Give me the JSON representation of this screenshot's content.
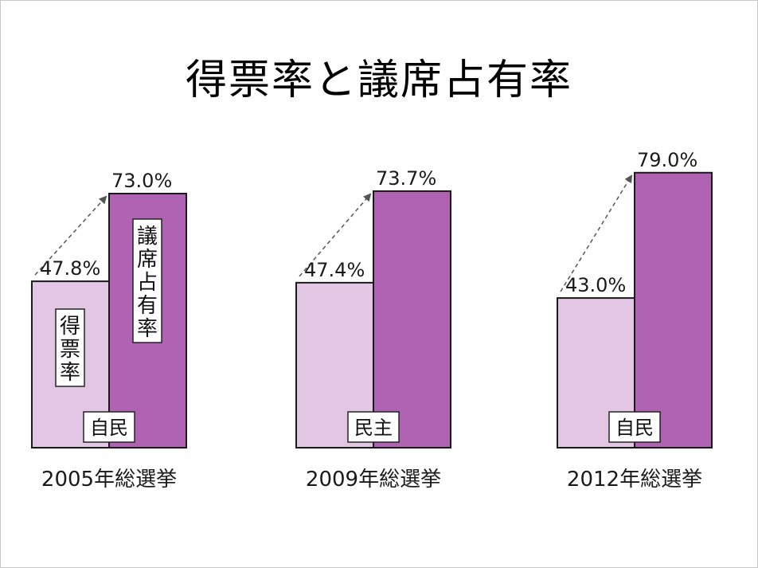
{
  "title": "得票率と議席占有率",
  "colors": {
    "vote_share": "#e3c6e3",
    "seat_share": "#b163b3",
    "bar_stroke": "#1a1a1a",
    "arrow": "#555555"
  },
  "chart_data": {
    "type": "bar",
    "title": "得票率と議席占有率",
    "ylim": [
      0,
      100
    ],
    "series_labels": [
      "得票率",
      "議席占有率"
    ],
    "groups": [
      {
        "election": "2005年総選挙",
        "party": "自民",
        "vote_share": 47.8,
        "seat_share": 73.0,
        "vote_label": "47.8%",
        "seat_label": "73.0%"
      },
      {
        "election": "2009年総選挙",
        "party": "民主",
        "vote_share": 47.4,
        "seat_share": 73.7,
        "vote_label": "47.4%",
        "seat_label": "73.7%"
      },
      {
        "election": "2012年総選挙",
        "party": "自民",
        "vote_share": 43.0,
        "seat_share": 79.0,
        "vote_label": "43.0%",
        "seat_label": "79.0%"
      }
    ]
  }
}
